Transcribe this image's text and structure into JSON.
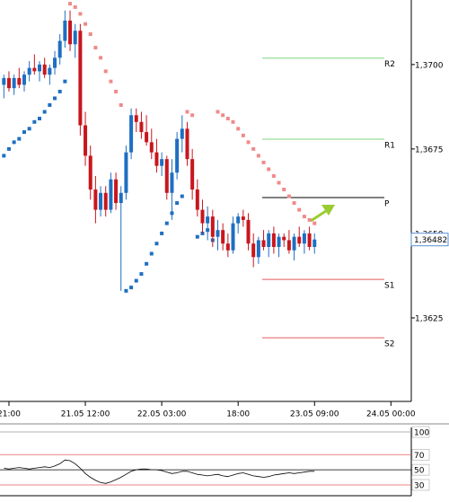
{
  "chart_data": {
    "type": "candlestick",
    "x": [
      1,
      2,
      3,
      4,
      5,
      6,
      7,
      8,
      9,
      10,
      11,
      12,
      13,
      14,
      15,
      16,
      17,
      18,
      19,
      20,
      21,
      22,
      23,
      24,
      25,
      26,
      27,
      28,
      29,
      30,
      31,
      32,
      33,
      34,
      35,
      36,
      37,
      38,
      39,
      40,
      41,
      42,
      43,
      44,
      45,
      46,
      47,
      48,
      49,
      50,
      51,
      52,
      53,
      54,
      55,
      56,
      57,
      58,
      59,
      60,
      61,
      62
    ],
    "open": [
      1.3694,
      1.3696,
      1.3693,
      1.3696,
      1.3694,
      1.3697,
      1.3699,
      1.3698,
      1.37,
      1.3697,
      1.3699,
      1.3702,
      1.3707,
      1.3713,
      1.3706,
      1.371,
      1.3682,
      1.3673,
      1.3663,
      1.3657,
      1.3662,
      1.3657,
      1.3666,
      1.3659,
      1.3662,
      1.3674,
      1.3685,
      1.3683,
      1.368,
      1.3677,
      1.3674,
      1.367,
      1.3672,
      1.3662,
      1.3668,
      1.3678,
      1.3681,
      1.3672,
      1.3663,
      1.3657,
      1.3653,
      1.3655,
      1.3649,
      1.3651,
      1.3647,
      1.3645,
      1.3653,
      1.3655,
      1.3654,
      1.3647,
      1.3643,
      1.3648,
      1.3646,
      1.365,
      1.3646,
      1.3649,
      1.3648,
      1.3645,
      1.3649,
      1.3647,
      1.365,
      1.3646
    ],
    "high": [
      1.3697,
      1.3698,
      1.3697,
      1.3699,
      1.3698,
      1.3701,
      1.3703,
      1.3701,
      1.3702,
      1.37,
      1.3704,
      1.3709,
      1.3716,
      1.3716,
      1.3712,
      1.3712,
      1.3686,
      1.3676,
      1.3667,
      1.3664,
      1.3664,
      1.3668,
      1.3668,
      1.3664,
      1.3676,
      1.3687,
      1.3687,
      1.3686,
      1.3685,
      1.3681,
      1.3678,
      1.3674,
      1.3673,
      1.3672,
      1.368,
      1.3685,
      1.3683,
      1.3675,
      1.3666,
      1.366,
      1.3658,
      1.3657,
      1.3654,
      1.3653,
      1.365,
      1.3655,
      1.3656,
      1.3657,
      1.3656,
      1.365,
      1.3649,
      1.3651,
      1.3651,
      1.3652,
      1.365,
      1.365,
      1.3651,
      1.365,
      1.3652,
      1.3651,
      1.3652,
      1.365
    ],
    "low": [
      1.369,
      1.3692,
      1.3691,
      1.3693,
      1.3692,
      1.3695,
      1.3697,
      1.3695,
      1.3696,
      1.3694,
      1.3697,
      1.37,
      1.3705,
      1.3704,
      1.3702,
      1.3679,
      1.367,
      1.366,
      1.3653,
      1.3655,
      1.3655,
      1.3656,
      1.3657,
      1.3633,
      1.366,
      1.3672,
      1.368,
      1.3678,
      1.3676,
      1.3672,
      1.3668,
      1.3667,
      1.366,
      1.3654,
      1.3666,
      1.3674,
      1.367,
      1.366,
      1.3655,
      1.365,
      1.3648,
      1.3646,
      1.3645,
      1.3645,
      1.3643,
      1.3644,
      1.365,
      1.3652,
      1.3645,
      1.364,
      1.3641,
      1.3645,
      1.3643,
      1.3644,
      1.3643,
      1.3646,
      1.3644,
      1.3642,
      1.3646,
      1.3644,
      1.3645,
      1.3644
    ],
    "close": [
      1.3696,
      1.3693,
      1.3696,
      1.3694,
      1.3697,
      1.3699,
      1.3698,
      1.37,
      1.3697,
      1.3699,
      1.3702,
      1.3707,
      1.3713,
      1.3706,
      1.371,
      1.3682,
      1.3673,
      1.3663,
      1.3657,
      1.3662,
      1.3657,
      1.3666,
      1.3659,
      1.3662,
      1.3674,
      1.3685,
      1.3683,
      1.368,
      1.3677,
      1.3674,
      1.367,
      1.3672,
      1.3662,
      1.3668,
      1.3678,
      1.3681,
      1.3672,
      1.3663,
      1.3657,
      1.3653,
      1.3655,
      1.3649,
      1.3651,
      1.3647,
      1.3645,
      1.3653,
      1.3655,
      1.3654,
      1.3647,
      1.3643,
      1.3648,
      1.3646,
      1.365,
      1.3646,
      1.3649,
      1.3648,
      1.3645,
      1.3649,
      1.3647,
      1.365,
      1.3646,
      1.36482
    ],
    "sar": [
      1.3673,
      1.3675,
      1.3677,
      1.3678,
      1.368,
      1.3681,
      1.3683,
      1.3684,
      1.3686,
      1.3688,
      1.369,
      1.3692,
      1.3695,
      1.3718,
      1.3717,
      1.3715,
      1.3712,
      1.3709,
      1.3705,
      1.3702,
      1.3698,
      1.3695,
      1.3692,
      1.3688,
      1.3633,
      1.3634,
      1.3636,
      1.3638,
      1.3641,
      1.3644,
      1.3647,
      1.365,
      1.3653,
      1.3656,
      1.3659,
      1.3661,
      1.3686,
      1.3685,
      1.3649,
      1.365,
      1.3651,
      1.3648,
      1.3686,
      1.3685,
      1.3684,
      1.3683,
      1.3681,
      1.3679,
      1.3677,
      1.3675,
      1.3673,
      1.3671,
      1.3669,
      1.3667,
      1.3665,
      1.3663,
      1.3661,
      1.3659,
      1.3657,
      1.3655,
      1.3654,
      1.3653
    ],
    "up_color": "#1e6fc2",
    "down_color": "#c8161d",
    "sar_up_color": "#1e6fc2",
    "sar_down_color": "#f08a8a",
    "xlim": [
      0.24,
      81.0
    ],
    "xticks": [
      {
        "value": 2,
        "label": "21:00"
      },
      {
        "value": 17,
        "label": "21.05 12:00"
      },
      {
        "value": 32,
        "label": "22.05 03:00"
      },
      {
        "value": 47,
        "label": "18:00"
      },
      {
        "value": 62,
        "label": "23.05 09:00"
      },
      {
        "value": 77,
        "label": "24.05 00:00"
      }
    ],
    "ylim": [
      1.36008,
      1.37191
    ],
    "yticks": [
      {
        "value": 1.3625,
        "label": "1,3625"
      },
      {
        "value": 1.365,
        "label": "1,3650"
      },
      {
        "value": 1.3675,
        "label": "1,3675"
      },
      {
        "value": 1.37,
        "label": "1,3700"
      }
    ],
    "last_price": {
      "value": 1.36482,
      "label": "1,36482"
    },
    "pivots": [
      {
        "label": "R2",
        "value": 1.37019,
        "color": "#7fd67f"
      },
      {
        "label": "R1",
        "value": 1.36779,
        "color": "#7fd67f"
      },
      {
        "label": "P",
        "value": 1.36606,
        "color": "#000000"
      },
      {
        "label": "S1",
        "value": 1.36364,
        "color": "#e05a5a"
      },
      {
        "label": "S2",
        "value": 1.36191,
        "color": "#e05a5a"
      }
    ],
    "oscillator": {
      "values": [
        52,
        51,
        52,
        53,
        52,
        51,
        52,
        53,
        54,
        53,
        55,
        58,
        63,
        62,
        58,
        52,
        45,
        40,
        36,
        33,
        32,
        34,
        37,
        40,
        44,
        48,
        50,
        51,
        51,
        50,
        50,
        49,
        47,
        45,
        46,
        48,
        48,
        46,
        44,
        43,
        42,
        43,
        44,
        42,
        41,
        43,
        45,
        46,
        44,
        42,
        41,
        40,
        41,
        43,
        44,
        45,
        46,
        45,
        46,
        47,
        48,
        48
      ],
      "ylim": [
        20,
        100
      ],
      "yticks": [
        30,
        50,
        70,
        100
      ],
      "ytick_colors": [
        "#e05a5a",
        "#000000",
        "#e05a5a",
        "#999999"
      ],
      "color": "#000000"
    }
  }
}
